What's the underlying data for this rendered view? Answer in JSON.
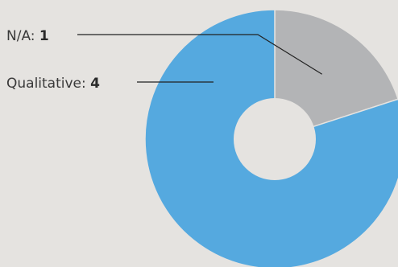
{
  "chart_data": {
    "type": "pie",
    "donut": true,
    "slices": [
      {
        "label": "N/A",
        "value": 1,
        "color": "#b3b4b6"
      },
      {
        "label": "Qualitative",
        "value": 4,
        "color": "#55a9df"
      }
    ],
    "background": "#e5e3e0",
    "hole_color": "#e5e3e0"
  }
}
